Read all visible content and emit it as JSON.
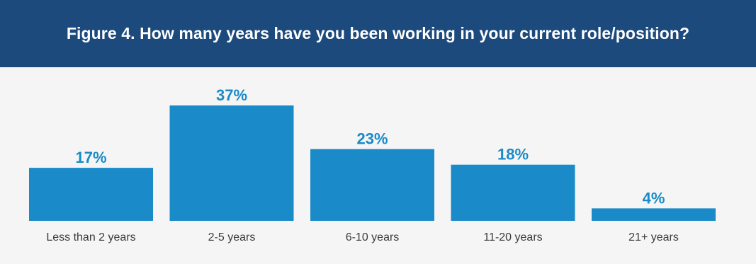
{
  "chart_data": {
    "type": "bar",
    "title": "Figure 4. How many years have you been working in your current role/position?",
    "categories": [
      "Less than 2 years",
      "2-5 years",
      "6-10 years",
      "11-20 years",
      "21+ years"
    ],
    "values": [
      17,
      37,
      23,
      18,
      4
    ],
    "value_labels": [
      "17%",
      "37%",
      "23%",
      "18%",
      "4%"
    ],
    "ylim": [
      0,
      37
    ],
    "grid": false,
    "xlabel": "",
    "ylabel": ""
  },
  "colors": {
    "header_bg": "#1c4a7c",
    "plot_bg": "#f4f5f4",
    "bar": "#1a8ac8",
    "value_label": "#1a8ac8",
    "title_text": "#ffffff"
  }
}
